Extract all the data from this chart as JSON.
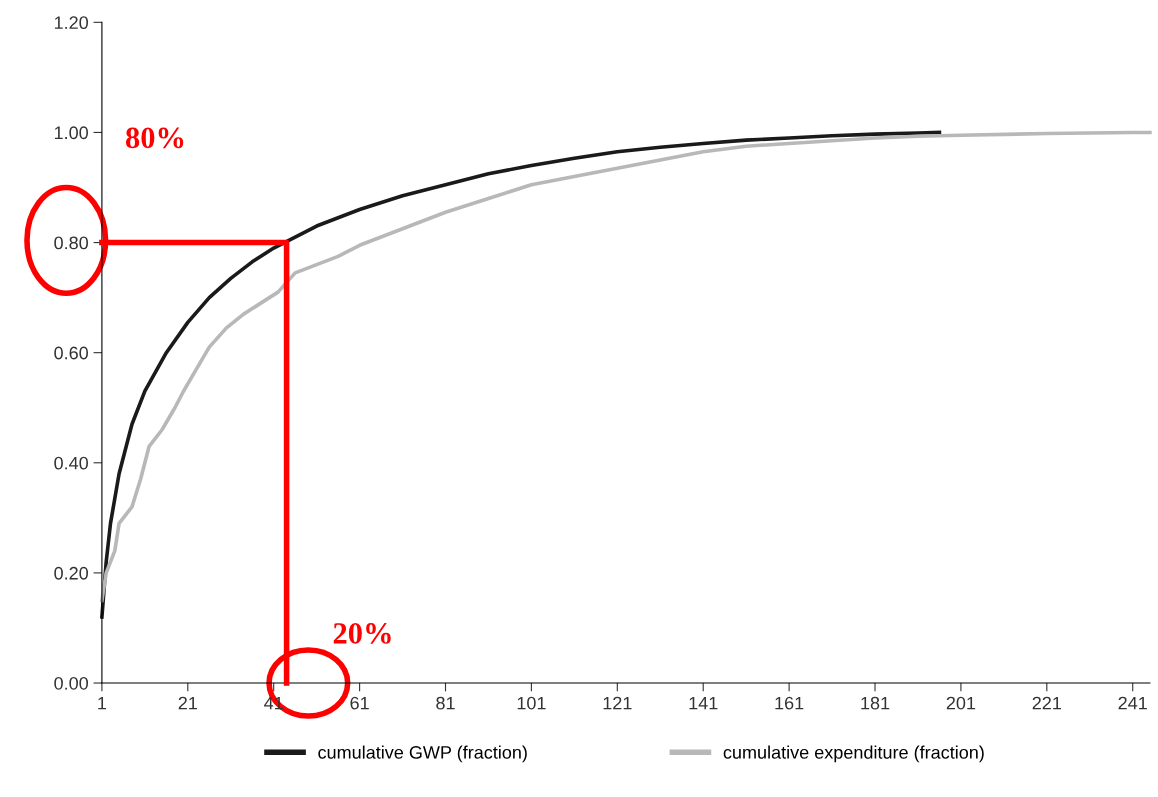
{
  "chart_data": {
    "type": "line",
    "xlim": [
      1,
      245
    ],
    "ylim": [
      0,
      1.2
    ],
    "xticks": [
      1,
      21,
      41,
      61,
      81,
      101,
      121,
      141,
      161,
      181,
      201,
      221,
      241
    ],
    "yticks": [
      {
        "value": 0,
        "label": "0.00"
      },
      {
        "value": 0.2,
        "label": "0.20"
      },
      {
        "value": 0.4,
        "label": "0.40"
      },
      {
        "value": 0.6,
        "label": "0.60"
      },
      {
        "value": 0.8,
        "label": "0.80"
      },
      {
        "value": 1.0,
        "label": "1.00"
      },
      {
        "value": 1.2,
        "label": "1.20"
      }
    ],
    "grid": false,
    "legend": "bottom",
    "series": [
      {
        "name": "cumulative GWP (fraction)",
        "color": "#1a1a1a",
        "x": [
          1,
          2,
          3,
          5,
          8,
          11,
          16,
          21,
          26,
          31,
          36,
          41,
          46,
          51,
          61,
          71,
          81,
          91,
          101,
          111,
          121,
          131,
          141,
          151,
          161,
          171,
          181,
          191,
          196
        ],
        "values": [
          0.12,
          0.22,
          0.29,
          0.38,
          0.47,
          0.53,
          0.6,
          0.655,
          0.7,
          0.735,
          0.765,
          0.79,
          0.81,
          0.83,
          0.86,
          0.885,
          0.905,
          0.925,
          0.94,
          0.953,
          0.965,
          0.973,
          0.98,
          0.986,
          0.99,
          0.994,
          0.997,
          0.999,
          1.0
        ]
      },
      {
        "name": "cumulative expenditure (fraction)",
        "color": "#b8b8b8",
        "x": [
          1,
          2,
          4,
          5,
          8,
          10,
          12,
          15,
          18,
          20,
          23,
          26,
          30,
          34,
          38,
          42,
          46,
          51,
          56,
          61,
          66,
          71,
          76,
          81,
          91,
          101,
          111,
          121,
          131,
          141,
          151,
          161,
          171,
          181,
          191,
          201,
          221,
          241,
          245
        ],
        "values": [
          0.15,
          0.2,
          0.24,
          0.29,
          0.32,
          0.37,
          0.43,
          0.46,
          0.5,
          0.53,
          0.57,
          0.61,
          0.645,
          0.67,
          0.69,
          0.71,
          0.745,
          0.76,
          0.775,
          0.795,
          0.81,
          0.825,
          0.84,
          0.855,
          0.88,
          0.905,
          0.92,
          0.935,
          0.95,
          0.965,
          0.975,
          0.98,
          0.985,
          0.99,
          0.993,
          0.995,
          0.998,
          1.0,
          1.0
        ]
      },
      {
        "color": "#ff0000",
        "x": [
          1,
          44,
          44
        ],
        "values": [
          0.8,
          0.8,
          0
        ]
      }
    ],
    "annotations": [
      "80%",
      "20%"
    ]
  }
}
